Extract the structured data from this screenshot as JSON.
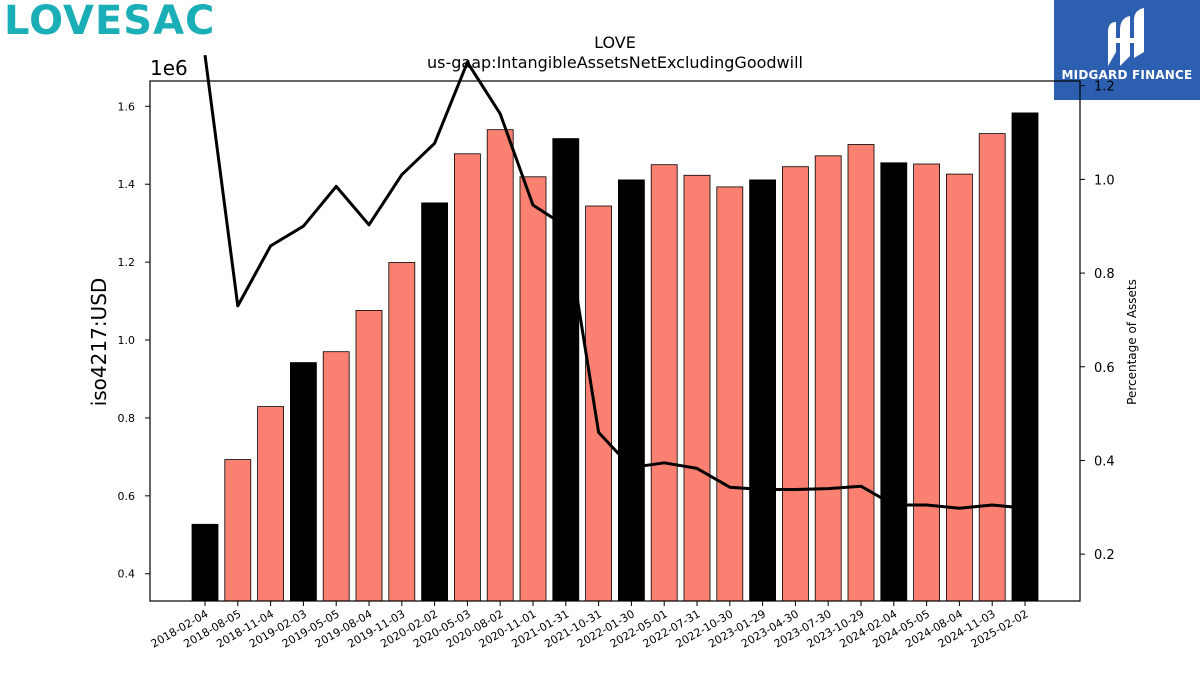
{
  "logos": {
    "left_text": "LOVESAC",
    "right_text": "MIDGARD FINANCE"
  },
  "chart_data": {
    "type": "bar",
    "title": "LOVE",
    "subtitle": "us-gaap:IntangibleAssetsNetExcludingGoodwill",
    "ylabel": "iso4217:USD",
    "y2label": "Percentage of Assets",
    "y_offset_label": "1e6",
    "ylim": [
      0.33,
      1.665
    ],
    "y2lim": [
      0.1,
      1.21
    ],
    "y_ticks": [
      0.4,
      0.6,
      0.8,
      1.0,
      1.2,
      1.4,
      1.6
    ],
    "y2_ticks": [
      0.2,
      0.4,
      0.6,
      0.8,
      1.0,
      1.2
    ],
    "categories": [
      "2018-02-04",
      "2018-08-05",
      "2018-11-04",
      "2019-02-03",
      "2019-05-05",
      "2019-08-04",
      "2019-11-03",
      "2020-02-02",
      "2020-05-03",
      "2020-08-02",
      "2020-11-01",
      "2021-01-31",
      "2021-10-31",
      "2022-01-30",
      "2022-05-01",
      "2022-07-31",
      "2022-10-30",
      "2023-01-29",
      "2023-04-30",
      "2023-07-30",
      "2023-10-29",
      "2024-02-04",
      "2024-05-05",
      "2024-08-04",
      "2024-11-03",
      "2025-02-02"
    ],
    "series": [
      {
        "values": [
          0.527,
          0.693,
          0.829,
          0.942,
          0.97,
          1.076,
          1.199,
          1.352,
          1.478,
          1.54,
          1.419,
          1.517,
          1.344,
          1.411,
          1.45,
          1.423,
          1.393,
          1.411,
          1.445,
          1.473,
          1.502,
          1.455,
          1.452,
          1.426,
          1.53,
          1.583
        ],
        "fiscal_year_end": [
          true,
          false,
          false,
          true,
          false,
          false,
          false,
          true,
          false,
          false,
          false,
          true,
          false,
          true,
          false,
          false,
          false,
          true,
          false,
          false,
          false,
          true,
          false,
          false,
          false,
          true
        ]
      },
      {
        "axis": "right",
        "type": "line",
        "values": [
          1.265,
          0.73,
          0.858,
          0.9,
          0.985,
          0.903,
          1.01,
          1.077,
          1.25,
          1.14,
          0.945,
          0.9,
          0.46,
          0.385,
          0.395,
          0.383,
          0.343,
          0.338,
          0.338,
          0.34,
          0.345,
          0.305,
          0.305,
          0.298,
          0.305,
          0.298
        ]
      }
    ],
    "colors": {
      "fiscal_year_end": "#000000",
      "other": "#fa8072",
      "line": "#000000"
    },
    "grid": false,
    "legend": "none"
  }
}
